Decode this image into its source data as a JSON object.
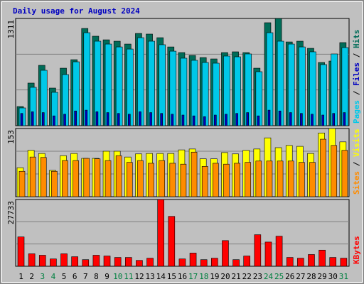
{
  "chart_data": [
    {
      "type": "bar",
      "title": "Daily usage for August 2024",
      "title_color": "#0000c0",
      "ylim": [
        0,
        1311
      ],
      "yticks": [
        1311
      ],
      "legend_separator": " / ",
      "series": [
        {
          "name": "Pages",
          "color": "#00c8e8",
          "values": [
            217,
            469,
            677,
            408,
            625,
            781,
            1137,
            1033,
            998,
            963,
            937,
            1076,
            1033,
            990,
            911,
            825,
            799,
            773,
            764,
            851,
            842,
            877,
            660,
            1137,
            1033,
            998,
            963,
            903,
            747,
            877,
            955
          ]
        },
        {
          "name": "Files",
          "color": "#0000c0",
          "values": [
            150,
            170,
            160,
            120,
            140,
            180,
            190,
            170,
            160,
            150,
            140,
            170,
            160,
            150,
            140,
            130,
            120,
            110,
            130,
            140,
            150,
            160,
            120,
            190,
            180,
            160,
            150,
            140,
            130,
            150,
            160
          ]
        },
        {
          "name": "Hits",
          "color": "#006c58",
          "values": [
            234,
            521,
            738,
            460,
            703,
            807,
            1189,
            1094,
            1050,
            1033,
            998,
            1128,
            1120,
            1076,
            963,
            894,
            859,
            833,
            816,
            894,
            903,
            894,
            703,
            1259,
            1311,
            1024,
            1033,
            946,
            773,
            790,
            1016
          ]
        }
      ]
    },
    {
      "type": "bar",
      "ylim": [
        0,
        153
      ],
      "yticks": [
        153
      ],
      "legend_separator": " / ",
      "series": [
        {
          "name": "Sites",
          "color": "#ff8c00",
          "values": [
            57,
            89,
            88,
            57,
            81,
            81,
            86,
            85,
            81,
            92,
            77,
            81,
            75,
            81,
            75,
            73,
            100,
            68,
            75,
            73,
            75,
            77,
            80,
            80,
            80,
            80,
            77,
            77,
            129,
            115,
            104
          ]
        },
        {
          "name": "Visits",
          "color": "#ffff00",
          "values": [
            65,
            104,
            97,
            59,
            92,
            97,
            86,
            86,
            102,
            102,
            89,
            96,
            97,
            97,
            97,
            105,
            107,
            85,
            85,
            99,
            96,
            104,
            107,
            132,
            110,
            115,
            113,
            97,
            143,
            153,
            123
          ]
        }
      ]
    },
    {
      "type": "bar",
      "ylim": [
        0,
        27733
      ],
      "yticks": [
        27733
      ],
      "categories": [
        "1",
        "2",
        "3",
        "4",
        "5",
        "6",
        "7",
        "8",
        "9",
        "10",
        "11",
        "12",
        "13",
        "14",
        "15",
        "16",
        "17",
        "18",
        "19",
        "20",
        "21",
        "22",
        "23",
        "24",
        "25",
        "26",
        "27",
        "28",
        "29",
        "30",
        "31"
      ],
      "category_colors": [
        "#000000",
        "#000000",
        "#008040",
        "#008040",
        "#000000",
        "#000000",
        "#000000",
        "#000000",
        "#000000",
        "#008040",
        "#008040",
        "#000000",
        "#000000",
        "#000000",
        "#000000",
        "#000000",
        "#008040",
        "#008040",
        "#000000",
        "#000000",
        "#000000",
        "#000000",
        "#000000",
        "#008040",
        "#008040",
        "#000000",
        "#000000",
        "#000000",
        "#000000",
        "#000000",
        "#008040"
      ],
      "series": [
        {
          "name": "KBytes",
          "color": "#ff0000",
          "values": [
            12192,
            5182,
            4572,
            3048,
            5182,
            3962,
            2743,
            4572,
            4267,
            3658,
            3658,
            2438,
            3353,
            27733,
            20726,
            3048,
            5486,
            2743,
            3353,
            10668,
            2743,
            4267,
            13106,
            10058,
            12497,
            3658,
            3353,
            4877,
            6706,
            3658,
            3353
          ]
        }
      ]
    }
  ]
}
